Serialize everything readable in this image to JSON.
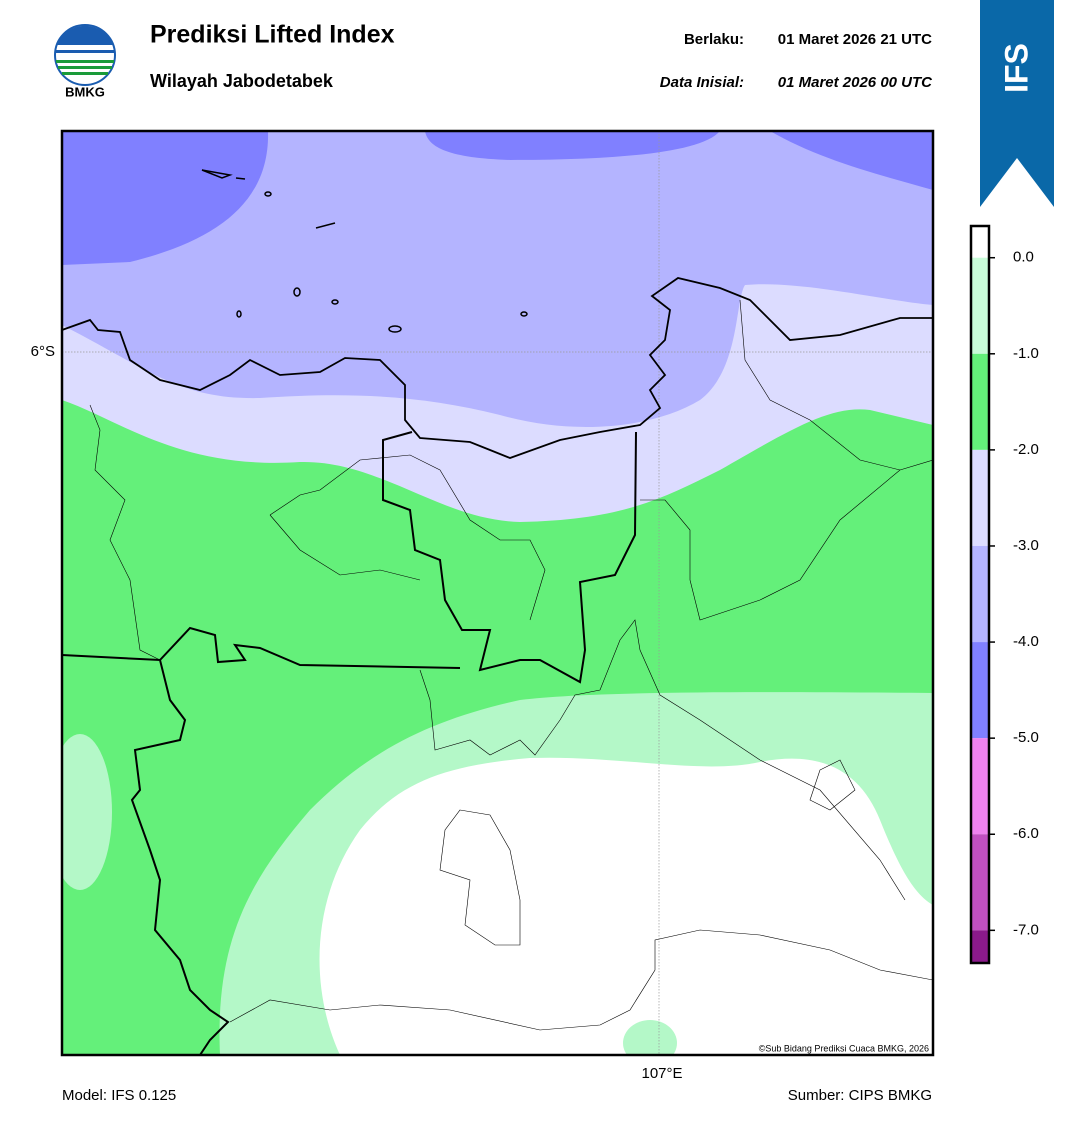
{
  "header": {
    "logo_text": "BMKG",
    "title": "Prediksi Lifted Index",
    "subtitle": "Wilayah Jabodetabek",
    "valid_label": "Berlaku:",
    "valid_time": "01 Maret 2026 21 UTC",
    "init_label": "Data Inisial:",
    "init_time": "01 Maret 2026 00 UTC",
    "badge": "IFS"
  },
  "map": {
    "lat_label": "6°S",
    "lon_label": "107°E",
    "credit": "©Sub Bidang Prediksi Cuaca BMKG, 2026"
  },
  "colorbar": {
    "lim": [
      -7.34,
      0.33
    ],
    "ticks": [
      {
        "value": 0,
        "label": "0.0"
      },
      {
        "value": -1,
        "label": "-1.0"
      },
      {
        "value": -2,
        "label": "-2.0"
      },
      {
        "value": -3,
        "label": "-3.0"
      },
      {
        "value": -4,
        "label": "-4.0"
      },
      {
        "value": -5,
        "label": "-5.0"
      },
      {
        "value": -6,
        "label": "-6.0"
      },
      {
        "value": -7,
        "label": "-7.0"
      }
    ],
    "colors": [
      "#ffffff",
      "#c8fcd8",
      "#64f07a",
      "#dcdcff",
      "#b4b4ff",
      "#8080ff",
      "#ee82ee",
      "#c050c0",
      "#8b1a8b"
    ]
  },
  "footer": {
    "model": "Model: IFS 0.125",
    "source": "Sumber: CIPS BMKG"
  }
}
